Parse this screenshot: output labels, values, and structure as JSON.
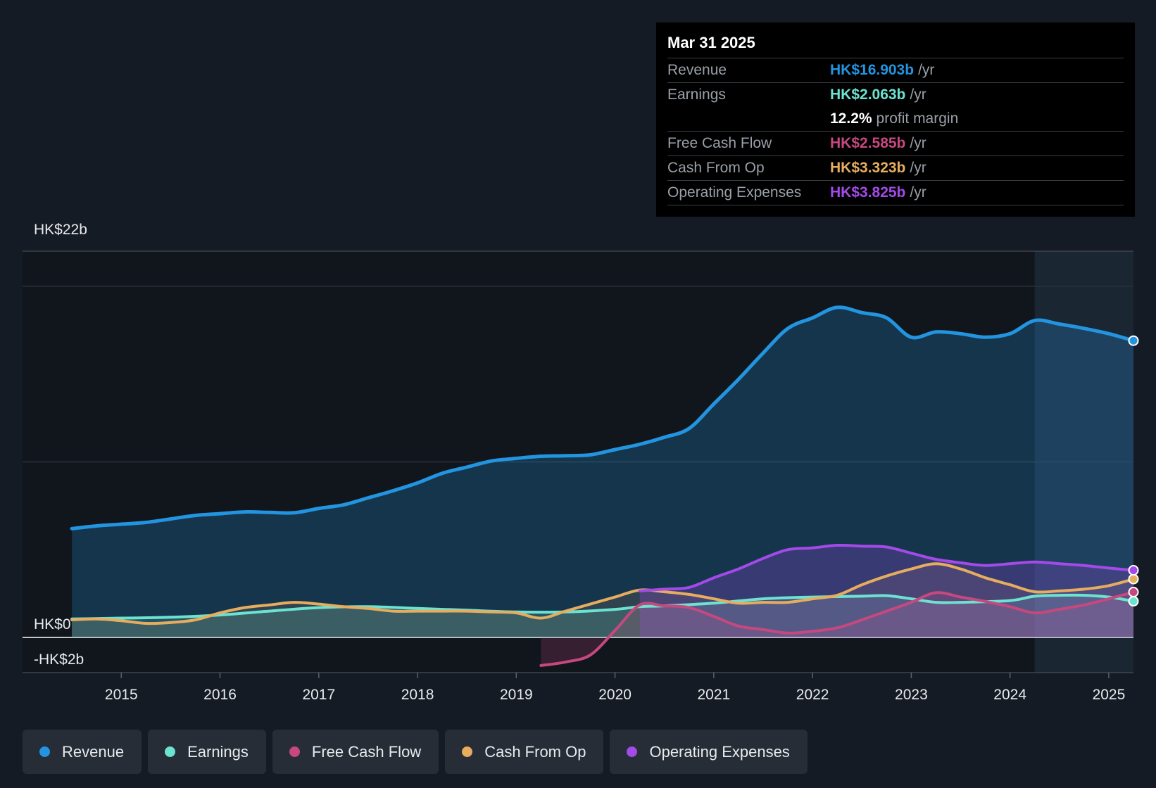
{
  "colors": {
    "revenue": "#2394df",
    "earnings": "#6ce3d1",
    "fcf": "#c6487f",
    "cfo": "#e7ad5f",
    "opex": "#a34ae8",
    "background": "#151b24",
    "tooltip_bg": "#000000"
  },
  "tooltip": {
    "date": "Mar 31 2025",
    "rows": [
      {
        "label": "Revenue",
        "value": "HK$16.903b",
        "unit": "/yr",
        "color": "#2394df"
      },
      {
        "label": "Earnings",
        "value": "HK$2.063b",
        "unit": "/yr",
        "color": "#6ce3d1"
      },
      {
        "label": "",
        "value": "12.2%",
        "unit": "profit margin",
        "color": "#ffffff"
      },
      {
        "label": "Free Cash Flow",
        "value": "HK$2.585b",
        "unit": "/yr",
        "color": "#c6487f"
      },
      {
        "label": "Cash From Op",
        "value": "HK$3.323b",
        "unit": "/yr",
        "color": "#e7ad5f"
      },
      {
        "label": "Operating Expenses",
        "value": "HK$3.825b",
        "unit": "/yr",
        "color": "#a34ae8"
      }
    ]
  },
  "legend": [
    {
      "label": "Revenue",
      "color": "#2394df"
    },
    {
      "label": "Earnings",
      "color": "#6ce3d1"
    },
    {
      "label": "Free Cash Flow",
      "color": "#c6487f"
    },
    {
      "label": "Cash From Op",
      "color": "#e7ad5f"
    },
    {
      "label": "Operating Expenses",
      "color": "#a34ae8"
    }
  ],
  "chart_data": {
    "type": "area",
    "title": "",
    "xlabel": "",
    "ylabel": "",
    "ylim": [
      -2,
      22
    ],
    "xlim": [
      2014.0,
      2025.25
    ],
    "y_ticks": [
      {
        "value": 22,
        "label": "HK$22b"
      },
      {
        "value": 0,
        "label": "HK$0"
      },
      {
        "value": -2,
        "label": "-HK$2b"
      }
    ],
    "x_ticks": [
      {
        "value": 2015,
        "label": "2015"
      },
      {
        "value": 2016,
        "label": "2016"
      },
      {
        "value": 2017,
        "label": "2017"
      },
      {
        "value": 2018,
        "label": "2018"
      },
      {
        "value": 2019,
        "label": "2019"
      },
      {
        "value": 2020,
        "label": "2020"
      },
      {
        "value": 2021,
        "label": "2021"
      },
      {
        "value": 2022,
        "label": "2022"
      },
      {
        "value": 2023,
        "label": "2023"
      },
      {
        "value": 2024,
        "label": "2024"
      },
      {
        "value": 2025,
        "label": "2025"
      }
    ],
    "forecast_start": 2024.25,
    "series": [
      {
        "name": "Revenue",
        "key": "revenue",
        "fill": true,
        "points": [
          [
            2014.5,
            6.2
          ],
          [
            2014.75,
            6.35
          ],
          [
            2015.0,
            6.45
          ],
          [
            2015.25,
            6.55
          ],
          [
            2015.5,
            6.75
          ],
          [
            2015.75,
            6.95
          ],
          [
            2016.0,
            7.05
          ],
          [
            2016.25,
            7.15
          ],
          [
            2016.5,
            7.12
          ],
          [
            2016.75,
            7.1
          ],
          [
            2017.0,
            7.35
          ],
          [
            2017.25,
            7.55
          ],
          [
            2017.5,
            7.95
          ],
          [
            2017.75,
            8.35
          ],
          [
            2018.0,
            8.8
          ],
          [
            2018.25,
            9.35
          ],
          [
            2018.5,
            9.7
          ],
          [
            2018.75,
            10.05
          ],
          [
            2019.0,
            10.2
          ],
          [
            2019.25,
            10.32
          ],
          [
            2019.5,
            10.35
          ],
          [
            2019.75,
            10.4
          ],
          [
            2020.0,
            10.7
          ],
          [
            2020.25,
            11.0
          ],
          [
            2020.5,
            11.4
          ],
          [
            2020.75,
            11.9
          ],
          [
            2021.0,
            13.3
          ],
          [
            2021.25,
            14.7
          ],
          [
            2021.5,
            16.2
          ],
          [
            2021.75,
            17.6
          ],
          [
            2022.0,
            18.2
          ],
          [
            2022.25,
            18.8
          ],
          [
            2022.5,
            18.5
          ],
          [
            2022.75,
            18.2
          ],
          [
            2023.0,
            17.1
          ],
          [
            2023.25,
            17.4
          ],
          [
            2023.5,
            17.3
          ],
          [
            2023.75,
            17.1
          ],
          [
            2024.0,
            17.3
          ],
          [
            2024.25,
            18.05
          ],
          [
            2024.5,
            17.85
          ],
          [
            2024.75,
            17.6
          ],
          [
            2025.0,
            17.3
          ],
          [
            2025.25,
            16.903
          ]
        ]
      },
      {
        "name": "Earnings",
        "key": "earnings",
        "fill": true,
        "points": [
          [
            2014.5,
            1.05
          ],
          [
            2015.0,
            1.1
          ],
          [
            2015.5,
            1.15
          ],
          [
            2016.0,
            1.28
          ],
          [
            2016.5,
            1.5
          ],
          [
            2017.0,
            1.7
          ],
          [
            2017.5,
            1.75
          ],
          [
            2018.0,
            1.65
          ],
          [
            2018.5,
            1.55
          ],
          [
            2019.0,
            1.45
          ],
          [
            2019.5,
            1.45
          ],
          [
            2020.0,
            1.6
          ],
          [
            2020.25,
            1.75
          ],
          [
            2020.5,
            1.8
          ],
          [
            2021.0,
            1.95
          ],
          [
            2021.5,
            2.2
          ],
          [
            2022.0,
            2.3
          ],
          [
            2022.5,
            2.35
          ],
          [
            2022.75,
            2.38
          ],
          [
            2023.0,
            2.2
          ],
          [
            2023.25,
            2.0
          ],
          [
            2023.5,
            2.0
          ],
          [
            2024.0,
            2.1
          ],
          [
            2024.25,
            2.35
          ],
          [
            2024.5,
            2.4
          ],
          [
            2024.75,
            2.4
          ],
          [
            2025.0,
            2.3
          ],
          [
            2025.25,
            2.063
          ]
        ]
      },
      {
        "name": "Free Cash Flow",
        "key": "fcf",
        "fill": true,
        "points": [
          [
            2019.25,
            -1.6
          ],
          [
            2019.5,
            -1.4
          ],
          [
            2019.75,
            -1.0
          ],
          [
            2020.0,
            0.4
          ],
          [
            2020.25,
            1.85
          ],
          [
            2020.5,
            1.8
          ],
          [
            2020.75,
            1.7
          ],
          [
            2021.0,
            1.2
          ],
          [
            2021.25,
            0.65
          ],
          [
            2021.5,
            0.45
          ],
          [
            2021.75,
            0.25
          ],
          [
            2022.0,
            0.35
          ],
          [
            2022.25,
            0.55
          ],
          [
            2022.5,
            1.0
          ],
          [
            2022.75,
            1.5
          ],
          [
            2023.0,
            2.0
          ],
          [
            2023.25,
            2.55
          ],
          [
            2023.5,
            2.3
          ],
          [
            2023.75,
            2.05
          ],
          [
            2024.0,
            1.75
          ],
          [
            2024.25,
            1.4
          ],
          [
            2024.5,
            1.6
          ],
          [
            2024.75,
            1.85
          ],
          [
            2025.0,
            2.2
          ],
          [
            2025.25,
            2.585
          ]
        ]
      },
      {
        "name": "Cash From Op",
        "key": "cfo",
        "fill": true,
        "points": [
          [
            2014.5,
            1.0
          ],
          [
            2014.75,
            1.05
          ],
          [
            2015.0,
            0.95
          ],
          [
            2015.25,
            0.8
          ],
          [
            2015.5,
            0.85
          ],
          [
            2015.75,
            1.0
          ],
          [
            2016.0,
            1.4
          ],
          [
            2016.25,
            1.7
          ],
          [
            2016.5,
            1.85
          ],
          [
            2016.75,
            2.0
          ],
          [
            2017.0,
            1.9
          ],
          [
            2017.25,
            1.75
          ],
          [
            2017.5,
            1.65
          ],
          [
            2017.75,
            1.5
          ],
          [
            2018.0,
            1.5
          ],
          [
            2018.25,
            1.5
          ],
          [
            2018.5,
            1.5
          ],
          [
            2018.75,
            1.45
          ],
          [
            2019.0,
            1.4
          ],
          [
            2019.25,
            1.1
          ],
          [
            2019.5,
            1.5
          ],
          [
            2019.75,
            1.9
          ],
          [
            2020.0,
            2.3
          ],
          [
            2020.25,
            2.7
          ],
          [
            2020.5,
            2.6
          ],
          [
            2020.75,
            2.45
          ],
          [
            2021.0,
            2.2
          ],
          [
            2021.25,
            1.95
          ],
          [
            2021.5,
            2.0
          ],
          [
            2021.75,
            2.0
          ],
          [
            2022.0,
            2.2
          ],
          [
            2022.25,
            2.4
          ],
          [
            2022.5,
            3.0
          ],
          [
            2022.75,
            3.5
          ],
          [
            2023.0,
            3.9
          ],
          [
            2023.25,
            4.2
          ],
          [
            2023.5,
            3.9
          ],
          [
            2023.75,
            3.4
          ],
          [
            2024.0,
            3.0
          ],
          [
            2024.25,
            2.6
          ],
          [
            2024.5,
            2.65
          ],
          [
            2024.75,
            2.75
          ],
          [
            2025.0,
            2.95
          ],
          [
            2025.25,
            3.323
          ]
        ]
      },
      {
        "name": "Operating Expenses",
        "key": "opex",
        "fill": true,
        "points": [
          [
            2020.25,
            2.65
          ],
          [
            2020.5,
            2.75
          ],
          [
            2020.75,
            2.85
          ],
          [
            2021.0,
            3.4
          ],
          [
            2021.25,
            3.9
          ],
          [
            2021.5,
            4.5
          ],
          [
            2021.75,
            5.0
          ],
          [
            2022.0,
            5.1
          ],
          [
            2022.25,
            5.25
          ],
          [
            2022.5,
            5.2
          ],
          [
            2022.75,
            5.15
          ],
          [
            2023.0,
            4.8
          ],
          [
            2023.25,
            4.45
          ],
          [
            2023.5,
            4.25
          ],
          [
            2023.75,
            4.1
          ],
          [
            2024.0,
            4.2
          ],
          [
            2024.25,
            4.3
          ],
          [
            2024.5,
            4.2
          ],
          [
            2024.75,
            4.1
          ],
          [
            2025.0,
            3.95
          ],
          [
            2025.25,
            3.825
          ]
        ]
      }
    ]
  }
}
